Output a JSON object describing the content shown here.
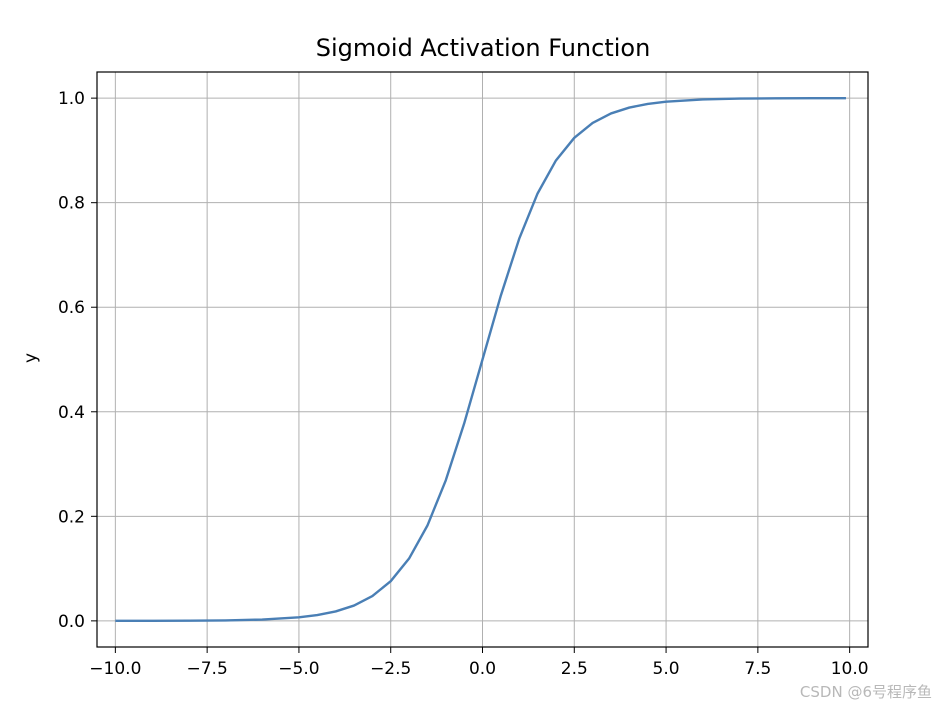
{
  "chart_data": {
    "type": "line",
    "title": "Sigmoid Activation Function",
    "xlabel": "",
    "ylabel": "y",
    "xlim": [
      -10.5,
      10.5
    ],
    "ylim": [
      -0.05,
      1.05
    ],
    "xticks": [
      -10.0,
      -7.5,
      -5.0,
      -2.5,
      0.0,
      2.5,
      5.0,
      7.5,
      10.0
    ],
    "xtick_labels": [
      "−10.0",
      "−7.5",
      "−5.0",
      "−2.5",
      "0.0",
      "2.5",
      "5.0",
      "7.5",
      "10.0"
    ],
    "yticks": [
      0.0,
      0.2,
      0.4,
      0.6,
      0.8,
      1.0
    ],
    "ytick_labels": [
      "0.0",
      "0.2",
      "0.4",
      "0.6",
      "0.8",
      "1.0"
    ],
    "grid": true,
    "line_color": "#4a7fb5",
    "series": [
      {
        "x": [
          -10,
          -9,
          -8,
          -7,
          -6,
          -5,
          -4.5,
          -4,
          -3.5,
          -3,
          -2.5,
          -2,
          -1.5,
          -1,
          -0.5,
          0,
          0.5,
          1,
          1.5,
          2,
          2.5,
          3,
          3.5,
          4,
          4.5,
          5,
          6,
          7,
          8,
          9,
          9.9
        ],
        "values": [
          0.0,
          0.0001,
          0.0003,
          0.0009,
          0.0025,
          0.0067,
          0.011,
          0.018,
          0.0293,
          0.0474,
          0.0759,
          0.1192,
          0.1824,
          0.2689,
          0.3775,
          0.5,
          0.6225,
          0.7311,
          0.8176,
          0.8808,
          0.9241,
          0.9526,
          0.9707,
          0.982,
          0.989,
          0.9933,
          0.9975,
          0.9991,
          0.9997,
          0.9999,
          1.0
        ]
      }
    ]
  },
  "watermark": "CSDN @6号程序鱼"
}
